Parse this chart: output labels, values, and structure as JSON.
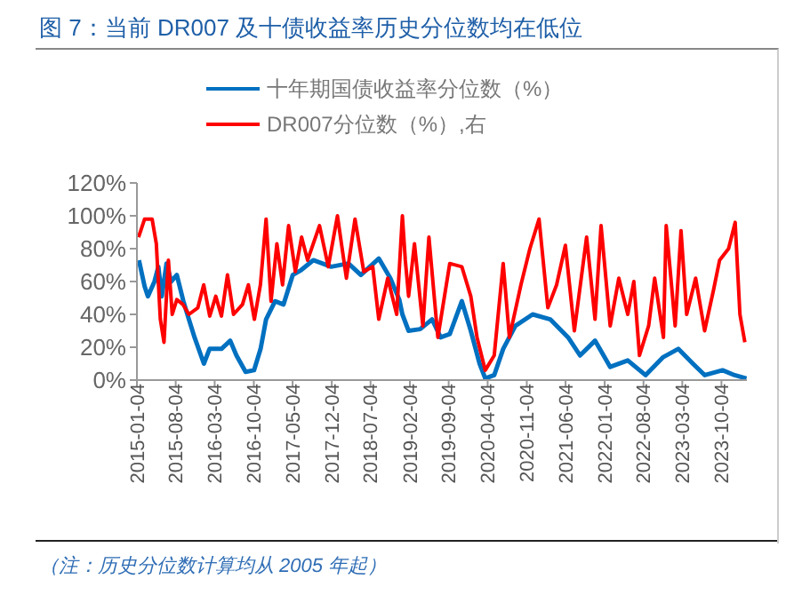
{
  "chart_data": {
    "type": "line",
    "title": "图 7：当前 DR007 及十债收益率历史分位数均在低位",
    "annotations": [
      "（注：历史分位数计算均从 2005 年起）"
    ],
    "xlim": [
      "2015-01-04",
      "2024-02-20"
    ],
    "xticks": [
      "2015-01-04",
      "2015-08-04",
      "2016-03-04",
      "2016-10-04",
      "2017-05-04",
      "2017-12-04",
      "2018-07-04",
      "2019-02-04",
      "2019-09-04",
      "2020-04-04",
      "2020-11-04",
      "2021-06-04",
      "2022-01-04",
      "2022-08-04",
      "2023-03-04",
      "2023-10-04"
    ],
    "ylim": [
      0,
      120
    ],
    "yticks": [
      {
        "value": 0,
        "label": "0%"
      },
      {
        "value": 20,
        "label": "20%"
      },
      {
        "value": 40,
        "label": "40%"
      },
      {
        "value": 60,
        "label": "60%"
      },
      {
        "value": 80,
        "label": "80%"
      },
      {
        "value": 100,
        "label": "100%"
      },
      {
        "value": 120,
        "label": "120%"
      }
    ],
    "legend": "top",
    "series": [
      {
        "name": "十年期国债收益率分位数（%）",
        "color": "#0070c0",
        "x": [
          "2015-01-15",
          "2015-02-15",
          "2015-03-05",
          "2015-04-10",
          "2015-05-01",
          "2015-05-20",
          "2015-06-15",
          "2015-07-10",
          "2015-08-10",
          "2015-09-15",
          "2015-10-15",
          "2015-11-15",
          "2016-01-05",
          "2016-02-05",
          "2016-04-10",
          "2016-05-28",
          "2016-07-01",
          "2016-08-20",
          "2016-10-05",
          "2016-11-10",
          "2016-12-10",
          "2017-01-28",
          "2017-03-15",
          "2017-05-05",
          "2017-06-20",
          "2017-08-25",
          "2017-12-01",
          "2018-03-05",
          "2018-05-12",
          "2018-08-18",
          "2018-10-20",
          "2018-12-08",
          "2018-12-25",
          "2019-01-28",
          "2019-04-01",
          "2019-06-05",
          "2019-07-22",
          "2019-09-10",
          "2019-11-15",
          "2020-01-03",
          "2020-02-20",
          "2020-03-22",
          "2020-05-10",
          "2020-06-28",
          "2020-09-03",
          "2020-12-06",
          "2021-03-12",
          "2021-06-18",
          "2021-08-22",
          "2021-11-12",
          "2022-02-03",
          "2022-05-10",
          "2022-08-15",
          "2022-11-20",
          "2023-02-10",
          "2023-05-01",
          "2023-07-05",
          "2023-10-10",
          "2023-12-15",
          "2024-02-18"
        ],
        "values": [
          73,
          57,
          51,
          60,
          69,
          51,
          71,
          60,
          64,
          48,
          37,
          26,
          10,
          19,
          19,
          24,
          15,
          5,
          6,
          19,
          37,
          48,
          46,
          64,
          67,
          73,
          69,
          71,
          64,
          74,
          62,
          49,
          40,
          30,
          31,
          37,
          26,
          28,
          48,
          30,
          10,
          1,
          3,
          19,
          33,
          40,
          37,
          26,
          15,
          24,
          8,
          12,
          3,
          14,
          19,
          10,
          3,
          6,
          3,
          1
        ]
      },
      {
        "name": "DR007分位数（%）,右",
        "color": "#ff0000",
        "x": [
          "2015-01-13",
          "2015-02-15",
          "2015-03-28",
          "2015-04-20",
          "2015-05-12",
          "2015-06-01",
          "2015-06-25",
          "2015-07-16",
          "2015-08-10",
          "2015-09-13",
          "2015-10-15",
          "2015-12-03",
          "2016-01-04",
          "2016-02-06",
          "2016-03-10",
          "2016-04-10",
          "2016-05-13",
          "2016-06-15",
          "2016-08-03",
          "2016-09-04",
          "2016-10-07",
          "2016-11-09",
          "2016-12-10",
          "2017-01-06",
          "2017-02-07",
          "2017-03-10",
          "2017-04-12",
          "2017-05-19",
          "2017-06-22",
          "2017-07-25",
          "2017-09-28",
          "2017-11-15",
          "2018-01-04",
          "2018-02-22",
          "2018-04-10",
          "2018-05-28",
          "2018-07-16",
          "2018-08-18",
          "2018-10-06",
          "2018-11-24",
          "2018-12-25",
          "2019-01-10",
          "2019-01-28",
          "2019-03-01",
          "2019-04-16",
          "2019-05-19",
          "2019-07-07",
          "2019-09-10",
          "2019-11-15",
          "2020-01-03",
          "2020-02-06",
          "2020-03-22",
          "2020-05-10",
          "2020-06-28",
          "2020-08-01",
          "2020-10-03",
          "2020-11-21",
          "2021-01-10",
          "2021-02-27",
          "2021-04-16",
          "2021-06-03",
          "2021-07-22",
          "2021-09-27",
          "2021-11-12",
          "2021-12-15",
          "2022-02-03",
          "2022-03-22",
          "2022-05-10",
          "2022-06-12",
          "2022-07-13",
          "2022-09-01",
          "2022-10-04",
          "2022-11-21",
          "2022-12-06",
          "2023-01-24",
          "2023-02-25",
          "2023-03-28",
          "2023-05-16",
          "2023-07-04",
          "2023-08-22",
          "2023-09-24",
          "2023-11-12",
          "2023-12-18",
          "2024-01-13",
          "2024-02-09"
        ],
        "values": [
          87,
          98,
          98,
          83,
          37,
          23,
          73,
          40,
          49,
          46,
          40,
          44,
          58,
          39,
          51,
          39,
          64,
          40,
          46,
          58,
          37,
          58,
          98,
          48,
          83,
          58,
          94,
          66,
          87,
          73,
          94,
          69,
          100,
          62,
          98,
          66,
          69,
          37,
          62,
          40,
          100,
          73,
          51,
          83,
          33,
          87,
          26,
          71,
          69,
          51,
          26,
          6,
          15,
          71,
          26,
          58,
          80,
          98,
          44,
          58,
          82,
          30,
          87,
          37,
          94,
          33,
          62,
          40,
          60,
          15,
          33,
          62,
          26,
          94,
          33,
          91,
          40,
          62,
          30,
          55,
          73,
          80,
          96,
          40,
          23
        ]
      }
    ]
  }
}
